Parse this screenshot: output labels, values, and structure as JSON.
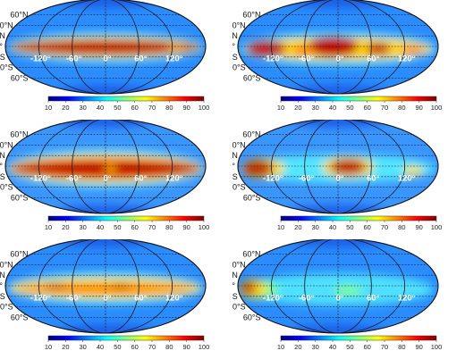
{
  "figure": {
    "colorbar": {
      "ticks": [
        "10",
        "20",
        "30",
        "40",
        "50",
        "60",
        "70",
        "80",
        "90",
        "100"
      ],
      "colors": [
        "#00007f",
        "#0000ff",
        "#0080ff",
        "#00ffff",
        "#80ff80",
        "#ffff00",
        "#ff8000",
        "#ff0000",
        "#7f0000"
      ]
    },
    "lat_labels": [
      "60°N",
      "40°N",
      "20°N",
      "0°",
      "20°S",
      "40°S",
      "60°S"
    ],
    "lon_labels": [
      "-120°",
      "-60°",
      "0°",
      "60°",
      "120°"
    ],
    "panels": [
      {
        "id": "top-left",
        "style": "belt-strong"
      },
      {
        "id": "top-right",
        "style": "patchy-warm"
      },
      {
        "id": "middle-left",
        "style": "belt-wide"
      },
      {
        "id": "middle-right",
        "style": "blobs"
      },
      {
        "id": "bottom-left",
        "style": "belt-medium"
      },
      {
        "id": "bottom-right",
        "style": "mostly-cool"
      }
    ]
  }
}
